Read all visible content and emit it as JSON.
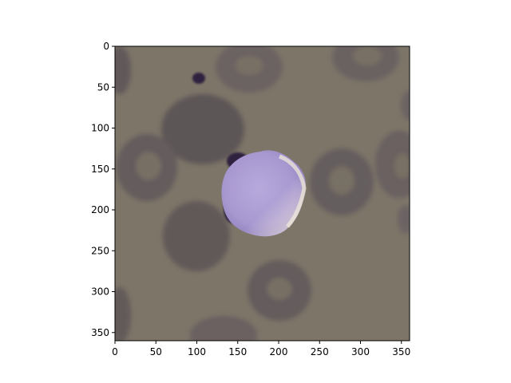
{
  "image": {
    "description_icon": "blood-smear-micrograph",
    "background_color": "#7d7568",
    "cell_color": "#5e5556",
    "highlight_color": "#b5a8d8",
    "highlight_edge_color": "#f2ecdf",
    "nucleus_color": "#2f2340"
  },
  "axes": {
    "xlim": [
      0,
      360
    ],
    "ylim": [
      360,
      0
    ],
    "x_ticks": [
      0,
      50,
      100,
      150,
      200,
      250,
      300,
      350
    ],
    "y_ticks": [
      0,
      50,
      100,
      150,
      200,
      250,
      300,
      350
    ],
    "x_tick_labels": [
      "0",
      "50",
      "100",
      "150",
      "200",
      "250",
      "300",
      "350"
    ],
    "y_tick_labels": [
      "0",
      "50",
      "100",
      "150",
      "200",
      "250",
      "300",
      "350"
    ],
    "frame_color": "#000000"
  }
}
